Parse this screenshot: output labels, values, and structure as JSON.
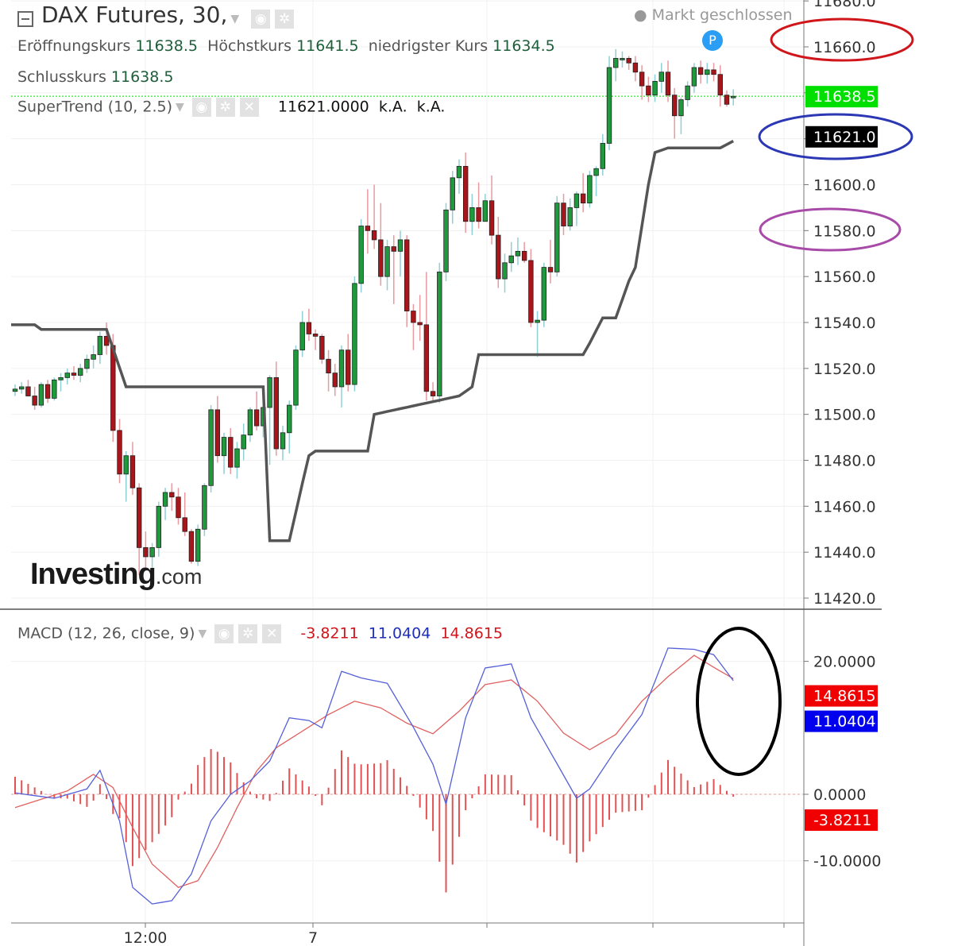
{
  "header": {
    "symbol": "DAX Futures, 30,",
    "market_status": "Markt geschlossen",
    "ohlc": [
      {
        "label": "Eröffnungskurs",
        "value": "11638.5"
      },
      {
        "label": "Höchstkurs",
        "value": "11641.5"
      },
      {
        "label": "niedrigster Kurs",
        "value": "11634.5"
      },
      {
        "label": "Schlusskurs",
        "value": "11638.5"
      }
    ],
    "supertrend": {
      "label": "SuperTrend (10, 2.5)",
      "value": "11621.0000",
      "na1": "k.A.",
      "na2": "k.A."
    },
    "macd": {
      "label": "MACD (12, 26, close, 9)",
      "hist": "-3.8211",
      "macd": "11.0404",
      "signal": "14.8615"
    },
    "marker": "P",
    "logo_main": "Investing",
    "logo_suffix": ".com"
  },
  "colors": {
    "up": "#1e9a3c",
    "down": "#a8151b",
    "supertrend": "#555555",
    "macd": "#5560d8",
    "signal": "#e06060",
    "hist": "#e35252",
    "last": "#00e000",
    "circle_red": "#d0151b",
    "circle_blue": "#2b37b3",
    "circle_purple": "#a84aa8"
  },
  "chart_data": [
    {
      "type": "candlestick",
      "title": "DAX Futures, 30",
      "x_ticks": [
        "12:00",
        "7"
      ],
      "y_ticks": [
        "11420.0",
        "11440.0",
        "11460.0",
        "11480.0",
        "11500.0",
        "11520.0",
        "11540.0",
        "11560.0",
        "11580.0",
        "11600.0",
        "11620.0",
        "11640.0",
        "11660.0",
        "11680.0"
      ],
      "y_range": [
        11414,
        11682
      ],
      "price_tags": [
        {
          "value": "11638.5",
          "y": 11638.5,
          "style": "last"
        },
        {
          "value": "11621.0",
          "y": 11621,
          "style": "supertrend"
        }
      ],
      "candles": [
        [
          11510,
          11513,
          11508,
          11511
        ],
        [
          11511,
          11514,
          11509,
          11512
        ],
        [
          11512,
          11515,
          11508,
          11508
        ],
        [
          11508,
          11512,
          11502,
          11504
        ],
        [
          11504,
          11514,
          11503,
          11513
        ],
        [
          11513,
          11515,
          11505,
          11507
        ],
        [
          11507,
          11516,
          11506,
          11515
        ],
        [
          11515,
          11518,
          11510,
          11516
        ],
        [
          11516,
          11520,
          11513,
          11518
        ],
        [
          11518,
          11521,
          11515,
          11517
        ],
        [
          11517,
          11522,
          11514,
          11520
        ],
        [
          11520,
          11526,
          11518,
          11524
        ],
        [
          11524,
          11530,
          11520,
          11526
        ],
        [
          11526,
          11536,
          11522,
          11534
        ],
        [
          11534,
          11540,
          11526,
          11530
        ],
        [
          11530,
          11535,
          11488,
          11493
        ],
        [
          11493,
          11498,
          11470,
          11474
        ],
        [
          11474,
          11484,
          11462,
          11482
        ],
        [
          11482,
          11488,
          11465,
          11468
        ],
        [
          11468,
          11470,
          11430,
          11442
        ],
        [
          11442,
          11449,
          11432,
          11438
        ],
        [
          11438,
          11444,
          11433,
          11442
        ],
        [
          11442,
          11462,
          11438,
          11460
        ],
        [
          11460,
          11468,
          11454,
          11466
        ],
        [
          11466,
          11470,
          11458,
          11464
        ],
        [
          11464,
          11468,
          11452,
          11455
        ],
        [
          11455,
          11466,
          11447,
          11449
        ],
        [
          11449,
          11450,
          11435,
          11436
        ],
        [
          11436,
          11452,
          11434,
          11450
        ],
        [
          11450,
          11470,
          11447,
          11469
        ],
        [
          11469,
          11504,
          11466,
          11502
        ],
        [
          11502,
          11508,
          11479,
          11482
        ],
        [
          11482,
          11492,
          11474,
          11490
        ],
        [
          11490,
          11494,
          11474,
          11477
        ],
        [
          11477,
          11488,
          11472,
          11485
        ],
        [
          11485,
          11496,
          11480,
          11491
        ],
        [
          11491,
          11503,
          11488,
          11502
        ],
        [
          11502,
          11510,
          11493,
          11495
        ],
        [
          11495,
          11506,
          11490,
          11503
        ],
        [
          11503,
          11517,
          11478,
          11516
        ],
        [
          11516,
          11523,
          11482,
          11485
        ],
        [
          11485,
          11495,
          11480,
          11492
        ],
        [
          11492,
          11506,
          11483,
          11504
        ],
        [
          11504,
          11530,
          11502,
          11528
        ],
        [
          11528,
          11545,
          11525,
          11540
        ],
        [
          11540,
          11546,
          11532,
          11535
        ],
        [
          11535,
          11537,
          11528,
          11534
        ],
        [
          11534,
          11535,
          11522,
          11524
        ],
        [
          11524,
          11528,
          11510,
          11518
        ],
        [
          11518,
          11522,
          11508,
          11512
        ],
        [
          11512,
          11530,
          11503,
          11528
        ],
        [
          11528,
          11535,
          11510,
          11513
        ],
        [
          11513,
          11560,
          11510,
          11557
        ],
        [
          11557,
          11585,
          11553,
          11582
        ],
        [
          11582,
          11598,
          11570,
          11580
        ],
        [
          11580,
          11600,
          11572,
          11576
        ],
        [
          11576,
          11592,
          11556,
          11560
        ],
        [
          11560,
          11576,
          11554,
          11573
        ],
        [
          11573,
          11578,
          11548,
          11571
        ],
        [
          11571,
          11580,
          11560,
          11576
        ],
        [
          11576,
          11578,
          11538,
          11545
        ],
        [
          11545,
          11548,
          11528,
          11540
        ],
        [
          11540,
          11552,
          11532,
          11539
        ],
        [
          11539,
          11562,
          11506,
          11510
        ],
        [
          11510,
          11514,
          11506,
          11508
        ],
        [
          11508,
          11566,
          11505,
          11562
        ],
        [
          11562,
          11592,
          11558,
          11589
        ],
        [
          11589,
          11606,
          11583,
          11603
        ],
        [
          11603,
          11611,
          11596,
          11608
        ],
        [
          11608,
          11614,
          11579,
          11584
        ],
        [
          11584,
          11596,
          11578,
          11590
        ],
        [
          11590,
          11601,
          11581,
          11584
        ],
        [
          11584,
          11596,
          11586,
          11593
        ],
        [
          11593,
          11604,
          11574,
          11578
        ],
        [
          11578,
          11586,
          11555,
          11559
        ],
        [
          11559,
          11570,
          11553,
          11566
        ],
        [
          11566,
          11575,
          11562,
          11569
        ],
        [
          11569,
          11577,
          11565,
          11571
        ],
        [
          11571,
          11575,
          11566,
          11567
        ],
        [
          11567,
          11572,
          11538,
          11540
        ],
        [
          11540,
          11545,
          11525,
          11541
        ],
        [
          11541,
          11566,
          11538,
          11564
        ],
        [
          11564,
          11576,
          11557,
          11562
        ],
        [
          11562,
          11595,
          11560,
          11592
        ],
        [
          11592,
          11596,
          11578,
          11582
        ],
        [
          11582,
          11594,
          11580,
          11590
        ],
        [
          11590,
          11597,
          11582,
          11596
        ],
        [
          11596,
          11605,
          11588,
          11592
        ],
        [
          11592,
          11606,
          11590,
          11604
        ],
        [
          11604,
          11608,
          11595,
          11607
        ],
        [
          11607,
          11622,
          11604,
          11618
        ],
        [
          11618,
          11656,
          11615,
          11651
        ],
        [
          11651,
          11659,
          11645,
          11655
        ],
        [
          11655,
          11658,
          11651,
          11655
        ],
        [
          11655,
          11656,
          11650,
          11653
        ],
        [
          11653,
          11656,
          11645,
          11649
        ],
        [
          11649,
          11652,
          11637,
          11643
        ],
        [
          11643,
          11647,
          11636,
          11639
        ],
        [
          11639,
          11648,
          11636,
          11645
        ],
        [
          11645,
          11653,
          11640,
          11649
        ],
        [
          11649,
          11654,
          11636,
          11639
        ],
        [
          11639,
          11642,
          11620,
          11630
        ],
        [
          11630,
          11638,
          11622,
          11637
        ],
        [
          11637,
          11645,
          11634,
          11643
        ],
        [
          11643,
          11653,
          11640,
          11651
        ],
        [
          11651,
          11654,
          11644,
          11648
        ],
        [
          11648,
          11653,
          11644,
          11650
        ],
        [
          11650,
          11653,
          11645,
          11648
        ],
        [
          11648,
          11652,
          11634,
          11639
        ],
        [
          11639,
          11641,
          11634,
          11635
        ],
        [
          11638.5,
          11641.5,
          11634.5,
          11638.5
        ]
      ],
      "supertrend_knots": [
        [
          0,
          11539
        ],
        [
          3,
          11539
        ],
        [
          4,
          11537
        ],
        [
          14,
          11537
        ],
        [
          17,
          11512
        ],
        [
          38,
          11512
        ],
        [
          39,
          11445
        ],
        [
          42,
          11445
        ],
        [
          44,
          11470
        ],
        [
          45,
          11482
        ],
        [
          46,
          11484
        ],
        [
          54,
          11484
        ],
        [
          55,
          11500
        ],
        [
          68,
          11508
        ],
        [
          70,
          11512
        ],
        [
          71,
          11526
        ],
        [
          87,
          11526
        ],
        [
          88,
          11531
        ],
        [
          90,
          11542
        ],
        [
          92,
          11542
        ],
        [
          94,
          11558
        ],
        [
          95,
          11564
        ],
        [
          97,
          11600
        ],
        [
          98,
          11614
        ],
        [
          100,
          11616
        ],
        [
          108,
          11616
        ],
        [
          110,
          11619
        ],
        [
          112,
          11621
        ],
        [
          114,
          11621
        ]
      ],
      "series_names": [
        "SuperTrend (10, 2.5)"
      ]
    },
    {
      "type": "line",
      "title": "MACD (12, 26, close, 9)",
      "y_ticks": [
        "-10.0000",
        "0.0000",
        "20.0000"
      ],
      "y_range": [
        -19,
        26
      ],
      "price_tags": [
        {
          "value": "14.8615",
          "y": 14.8615,
          "style": "signal"
        },
        {
          "value": "11.0404",
          "y": 11.0404,
          "style": "macd"
        },
        {
          "value": "-3.8211",
          "y": -3.8211,
          "style": "hist"
        }
      ],
      "series": [
        {
          "name": "MACD",
          "knots": [
            [
              0,
              0.2
            ],
            [
              6,
              -0.6
            ],
            [
              11,
              0.8
            ],
            [
              13,
              3.6
            ],
            [
              16,
              -4
            ],
            [
              18,
              -14
            ],
            [
              21,
              -16.5
            ],
            [
              24,
              -16
            ],
            [
              27,
              -12
            ],
            [
              30,
              -4
            ],
            [
              33,
              0
            ],
            [
              36,
              2
            ],
            [
              39,
              5
            ],
            [
              42,
              11.5
            ],
            [
              45,
              11.1
            ],
            [
              47,
              10
            ],
            [
              50,
              18.5
            ],
            [
              53,
              17.5
            ],
            [
              57,
              16.7
            ],
            [
              61,
              10.1
            ],
            [
              64,
              4.5
            ],
            [
              66,
              -1.5
            ],
            [
              69,
              11.5
            ],
            [
              72,
              19
            ],
            [
              76,
              19.6
            ],
            [
              79,
              11.5
            ],
            [
              83,
              4.6
            ],
            [
              86,
              -0.6
            ],
            [
              88,
              0.8
            ],
            [
              92,
              6.7
            ],
            [
              96,
              12
            ],
            [
              100,
              22
            ],
            [
              104,
              21.8
            ],
            [
              107,
              21
            ],
            [
              111,
              15.8
            ],
            [
              114,
              11.0404
            ]
          ]
        },
        {
          "name": "Signal",
          "knots": [
            [
              0,
              -2
            ],
            [
              8,
              0.5
            ],
            [
              12,
              3
            ],
            [
              15,
              1
            ],
            [
              18,
              -5
            ],
            [
              21,
              -10.5
            ],
            [
              25,
              -14
            ],
            [
              28,
              -13
            ],
            [
              31,
              -8
            ],
            [
              34,
              -2
            ],
            [
              37,
              3.5
            ],
            [
              40,
              7
            ],
            [
              44,
              9.5
            ],
            [
              48,
              12
            ],
            [
              52,
              14
            ],
            [
              56,
              13
            ],
            [
              60,
              10.7
            ],
            [
              64,
              9.1
            ],
            [
              68,
              12.5
            ],
            [
              72,
              16.5
            ],
            [
              76,
              17.2
            ],
            [
              80,
              14
            ],
            [
              84,
              9.2
            ],
            [
              88,
              6.7
            ],
            [
              92,
              9
            ],
            [
              96,
              14
            ],
            [
              100,
              17.7
            ],
            [
              104,
              20.9
            ],
            [
              107,
              19.1
            ],
            [
              110,
              17.4
            ],
            [
              114,
              14.8615
            ]
          ]
        }
      ],
      "histogram_note": "bars = MACD - Signal"
    }
  ]
}
